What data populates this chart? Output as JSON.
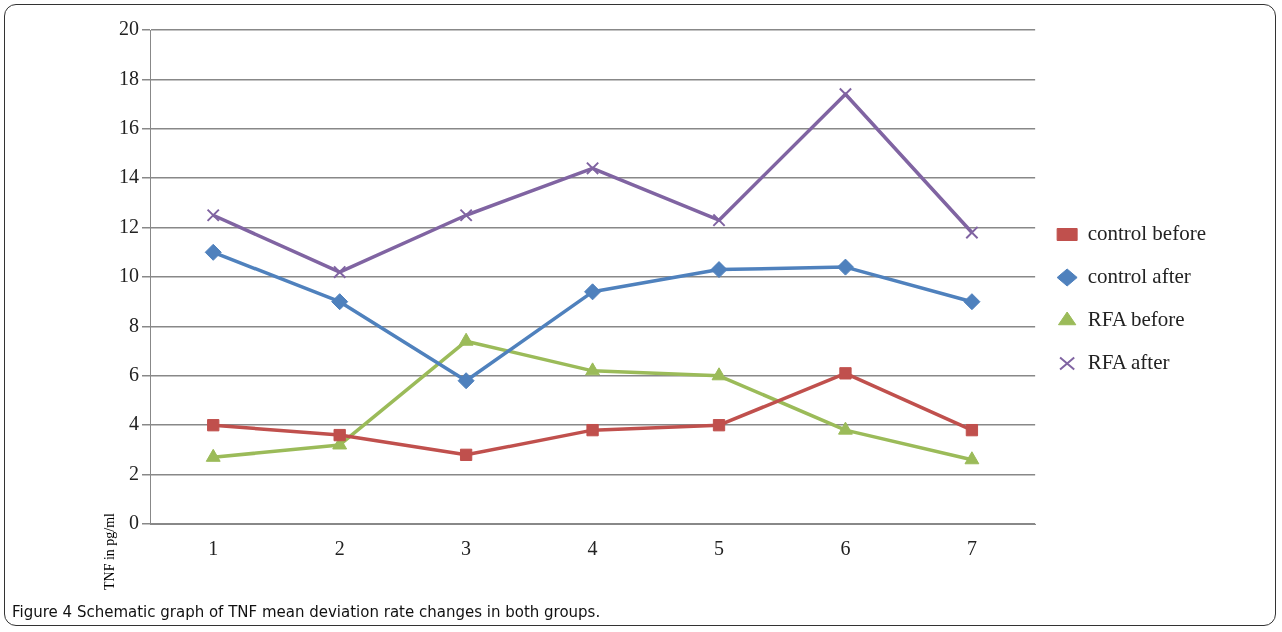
{
  "chart_data": {
    "type": "line",
    "ylabel": "TNF in pg/ml",
    "categories": [
      "1",
      "2",
      "3",
      "4",
      "5",
      "6",
      "7"
    ],
    "series": [
      {
        "name": "control before",
        "color": "#c0504d",
        "marker": "square",
        "values": [
          4.0,
          3.6,
          2.8,
          3.8,
          4.0,
          6.1,
          3.8
        ]
      },
      {
        "name": "control after",
        "color": "#4f81bd",
        "marker": "diamond",
        "values": [
          11.0,
          9.0,
          5.8,
          9.4,
          10.3,
          10.4,
          9.0
        ]
      },
      {
        "name": "RFA before",
        "color": "#9bbb59",
        "marker": "triangle",
        "values": [
          2.7,
          3.2,
          7.4,
          6.2,
          6.0,
          3.8,
          2.6
        ]
      },
      {
        "name": "RFA after",
        "color": "#8064a2",
        "marker": "cross",
        "values": [
          12.5,
          10.2,
          12.5,
          14.4,
          12.3,
          17.4,
          11.8
        ]
      }
    ],
    "ylim": [
      0,
      20
    ],
    "yticks": [
      0,
      2,
      4,
      6,
      8,
      10,
      12,
      14,
      16,
      18,
      20
    ],
    "grid": "y",
    "legend": "right",
    "annotations": [
      "Figure 4 Schematic graph of TNF mean deviation rate changes in both groups."
    ]
  }
}
